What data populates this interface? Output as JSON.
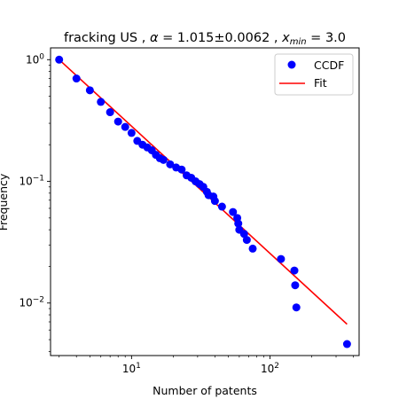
{
  "chart_data": {
    "type": "scatter",
    "title": "fracking US , α = 1.015±0.0062 , x_min = 3.0",
    "title_parts": {
      "prefix": "fracking US , ",
      "alpha_symbol": "α",
      "alpha_rest": " = 1.015±0.0062 , ",
      "xmin_var": "x",
      "xmin_sub": "min",
      "xmin_rest": " = 3.0"
    },
    "xlabel": "Number of patents",
    "ylabel": "Frequency",
    "x_scale": "log",
    "y_scale": "log",
    "xlim": [
      2.6,
      440
    ],
    "ylim": [
      0.0037,
      1.25
    ],
    "x_ticks": [
      {
        "value": 10,
        "base": "10",
        "exp": "1"
      },
      {
        "value": 100,
        "base": "10",
        "exp": "2"
      }
    ],
    "y_ticks": [
      {
        "value": 1,
        "base": "10",
        "exp": "0"
      },
      {
        "value": 0.1,
        "base": "10",
        "exp": "−1"
      },
      {
        "value": 0.01,
        "base": "10",
        "exp": "−2"
      }
    ],
    "legend_position": "top-right",
    "grid": false,
    "series": [
      {
        "name": "CCDF",
        "kind": "points",
        "color": "#0000ff",
        "points": [
          [
            3,
            1.0
          ],
          [
            4,
            0.7
          ],
          [
            5,
            0.56
          ],
          [
            6,
            0.45
          ],
          [
            7,
            0.37
          ],
          [
            8,
            0.31
          ],
          [
            9,
            0.28
          ],
          [
            10,
            0.25
          ],
          [
            11,
            0.215
          ],
          [
            12,
            0.2
          ],
          [
            13,
            0.19
          ],
          [
            14,
            0.18
          ],
          [
            15,
            0.165
          ],
          [
            16,
            0.155
          ],
          [
            17,
            0.15
          ],
          [
            19,
            0.138
          ],
          [
            21,
            0.13
          ],
          [
            23,
            0.125
          ],
          [
            25,
            0.112
          ],
          [
            27,
            0.107
          ],
          [
            29,
            0.1
          ],
          [
            31,
            0.095
          ],
          [
            33,
            0.09
          ],
          [
            35,
            0.082
          ],
          [
            36,
            0.077
          ],
          [
            39,
            0.075
          ],
          [
            40,
            0.069
          ],
          [
            45,
            0.062
          ],
          [
            54,
            0.056
          ],
          [
            58,
            0.05
          ],
          [
            59,
            0.045
          ],
          [
            60,
            0.04
          ],
          [
            65,
            0.037
          ],
          [
            68,
            0.033
          ],
          [
            75,
            0.028
          ],
          [
            120,
            0.023
          ],
          [
            150,
            0.0185
          ],
          [
            152,
            0.014
          ],
          [
            155,
            0.0092
          ],
          [
            360,
            0.0046
          ]
        ]
      },
      {
        "name": "Fit",
        "kind": "line",
        "color": "#ff0000",
        "points": [
          [
            3,
            1.0
          ],
          [
            360,
            0.0067
          ]
        ]
      }
    ]
  }
}
